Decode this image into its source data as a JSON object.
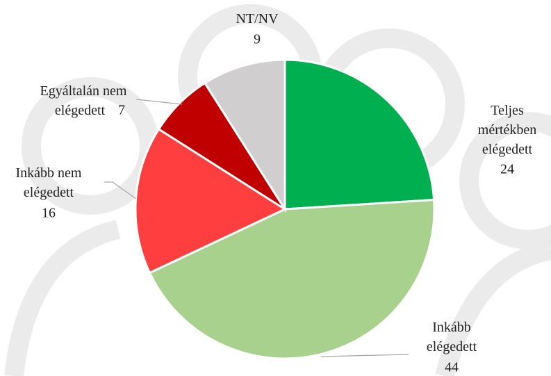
{
  "chart_data": {
    "type": "pie",
    "categories": [
      "Teljes mértékben elégedett",
      "Inkább elégedett",
      "Inkább nem elégedett",
      "Egyáltalán nem elégedett",
      "NT/NV"
    ],
    "values": [
      24,
      44,
      16,
      7,
      9
    ],
    "colors": [
      "#00b050",
      "#a9d18e",
      "#ff3f3f",
      "#c00000",
      "#d0cece"
    ]
  }
}
